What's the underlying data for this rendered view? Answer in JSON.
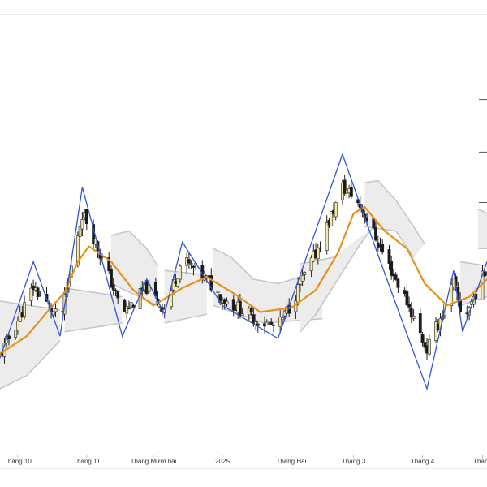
{
  "colors": {
    "background": "#ffffff",
    "frame": "#e6e6e6",
    "axis": "#bdbdbd",
    "zigzag": "#2f56d6",
    "moving_average": "#e8901c",
    "band_fill": "#ececec",
    "band_edge": "#c4c4c4",
    "candle_up": "#f3e7a6",
    "candle_down": "#1a1a1a",
    "wick": "#222222",
    "level_mark_dark": "#555555",
    "level_mark_red": "#d04040"
  },
  "chart_data": {
    "type": "candlestick",
    "x_axis": {
      "type": "date",
      "range": [
        "2024-09-23",
        "2025-04-30"
      ],
      "tick_labels": [
        {
          "label": "Tháng 10",
          "date": "2024-10-01"
        },
        {
          "label": "Tháng 11",
          "date": "2024-11-01"
        },
        {
          "label": "Tháng Mười hai",
          "date": "2024-12-01"
        },
        {
          "label": "2025",
          "date": "2025-01-01"
        },
        {
          "label": "Tháng Hai",
          "date": "2025-02-01"
        },
        {
          "label": "Tháng 3",
          "date": "2025-03-01"
        },
        {
          "label": "Tháng 4",
          "date": "2025-04-01"
        },
        {
          "label": "Tháng",
          "date": "2025-04-28"
        }
      ]
    },
    "y_axis": {
      "range": [
        0,
        100
      ],
      "grid": false,
      "tick_labels_visible": false
    },
    "series": [
      {
        "type": "zigzag",
        "points": [
          {
            "date": "2024-09-23",
            "y": 22.0
          },
          {
            "date": "2024-10-08",
            "y": 44.0
          },
          {
            "date": "2024-10-20",
            "y": 27.0
          },
          {
            "date": "2024-10-30",
            "y": 61.0
          },
          {
            "date": "2024-11-17",
            "y": 27.0
          },
          {
            "date": "2024-11-28",
            "y": 40.0
          },
          {
            "date": "2024-12-06",
            "y": 32.0
          },
          {
            "date": "2024-12-14",
            "y": 48.5
          },
          {
            "date": "2025-01-01",
            "y": 34.0
          },
          {
            "date": "2025-01-26",
            "y": 26.5
          },
          {
            "date": "2025-02-24",
            "y": 68.5
          },
          {
            "date": "2025-03-12",
            "y": 45.5
          },
          {
            "date": "2025-04-03",
            "y": 15.0
          },
          {
            "date": "2025-04-15",
            "y": 42.0
          },
          {
            "date": "2025-04-19",
            "y": 28.0
          },
          {
            "date": "2025-04-30",
            "y": 44.0
          }
        ]
      },
      {
        "type": "moving_average",
        "points": [
          {
            "date": "2024-09-23",
            "y": 23.0
          },
          {
            "date": "2024-10-05",
            "y": 27.0
          },
          {
            "date": "2024-10-15",
            "y": 33.0
          },
          {
            "date": "2024-10-22",
            "y": 37.0
          },
          {
            "date": "2024-10-28",
            "y": 44.0
          },
          {
            "date": "2024-11-02",
            "y": 47.5
          },
          {
            "date": "2024-11-12",
            "y": 44.0
          },
          {
            "date": "2024-11-22",
            "y": 37.5
          },
          {
            "date": "2024-12-01",
            "y": 34.0
          },
          {
            "date": "2024-12-14",
            "y": 38.0
          },
          {
            "date": "2024-12-25",
            "y": 40.5
          },
          {
            "date": "2025-01-07",
            "y": 36.5
          },
          {
            "date": "2025-01-18",
            "y": 32.5
          },
          {
            "date": "2025-02-01",
            "y": 33.5
          },
          {
            "date": "2025-02-12",
            "y": 37.5
          },
          {
            "date": "2025-02-22",
            "y": 46.0
          },
          {
            "date": "2025-03-01",
            "y": 55.0
          },
          {
            "date": "2025-03-06",
            "y": 56.5
          },
          {
            "date": "2025-03-15",
            "y": 51.0
          },
          {
            "date": "2025-03-25",
            "y": 47.0
          },
          {
            "date": "2025-04-02",
            "y": 39.0
          },
          {
            "date": "2025-04-12",
            "y": 34.0
          },
          {
            "date": "2025-04-22",
            "y": 36.0
          },
          {
            "date": "2025-04-30",
            "y": 40.0
          }
        ]
      },
      {
        "type": "band",
        "segments": [
          {
            "upper": [
              {
                "date": "2024-09-23",
                "y": 35.0
              },
              {
                "date": "2024-10-20",
                "y": 33.0
              }
            ],
            "lower": [
              {
                "date": "2024-09-23",
                "y": 15.0
              },
              {
                "date": "2024-10-05",
                "y": 18.0
              },
              {
                "date": "2024-10-20",
                "y": 26.0
              }
            ]
          },
          {
            "upper": [
              {
                "date": "2024-10-22",
                "y": 38.0
              },
              {
                "date": "2024-11-17",
                "y": 36.0
              }
            ],
            "lower": [
              {
                "date": "2024-10-22",
                "y": 28.0
              },
              {
                "date": "2024-11-17",
                "y": 30.0
              }
            ]
          },
          {
            "upper": [
              {
                "date": "2024-11-12",
                "y": 50.0
              },
              {
                "date": "2024-11-20",
                "y": 51.0
              },
              {
                "date": "2024-11-28",
                "y": 47.0
              },
              {
                "date": "2024-12-03",
                "y": 43.0
              }
            ],
            "lower": [
              {
                "date": "2024-11-12",
                "y": 39.0
              },
              {
                "date": "2024-12-03",
                "y": 34.0
              }
            ]
          },
          {
            "upper": [
              {
                "date": "2024-12-06",
                "y": 42.0
              },
              {
                "date": "2024-12-25",
                "y": 41.0
              }
            ],
            "lower": [
              {
                "date": "2024-12-06",
                "y": 30.0
              },
              {
                "date": "2024-12-25",
                "y": 32.0
              }
            ]
          },
          {
            "upper": [
              {
                "date": "2024-12-28",
                "y": 47.0
              },
              {
                "date": "2025-01-05",
                "y": 45.0
              },
              {
                "date": "2025-01-15",
                "y": 40.0
              },
              {
                "date": "2025-01-26",
                "y": 39.0
              },
              {
                "date": "2025-02-05",
                "y": 40.5
              },
              {
                "date": "2025-02-15",
                "y": 43.0
              }
            ],
            "lower": [
              {
                "date": "2024-12-28",
                "y": 34.0
              },
              {
                "date": "2025-01-20",
                "y": 30.0
              },
              {
                "date": "2025-02-15",
                "y": 31.0
              }
            ]
          },
          {
            "upper": [
              {
                "date": "2025-02-05",
                "y": 43.5
              },
              {
                "date": "2025-02-20",
                "y": 45.0
              }
            ],
            "lower": [
              {
                "date": "2025-02-05",
                "y": 28.0
              },
              {
                "date": "2025-02-12",
                "y": 32.0
              },
              {
                "date": "2025-02-22",
                "y": 40.0
              },
              {
                "date": "2025-03-04",
                "y": 48.0
              },
              {
                "date": "2025-03-10",
                "y": 52.0
              }
            ]
          },
          {
            "upper": [
              {
                "date": "2025-03-06",
                "y": 62.0
              },
              {
                "date": "2025-03-12",
                "y": 62.5
              },
              {
                "date": "2025-03-20",
                "y": 58.0
              },
              {
                "date": "2025-03-28",
                "y": 52.0
              },
              {
                "date": "2025-04-02",
                "y": 48.0
              }
            ],
            "lower": [
              {
                "date": "2025-03-06",
                "y": 52.0
              },
              {
                "date": "2025-03-20",
                "y": 51.0
              },
              {
                "date": "2025-03-28",
                "y": 45.0
              }
            ]
          },
          {
            "upper": [
              {
                "date": "2025-04-18",
                "y": 44.0
              },
              {
                "date": "2025-04-30",
                "y": 43.0
              }
            ],
            "lower": [
              {
                "date": "2025-04-18",
                "y": 34.0
              },
              {
                "date": "2025-04-30",
                "y": 36.0
              }
            ]
          },
          {
            "upper": [
              {
                "date": "2025-04-26",
                "y": 56.0
              },
              {
                "date": "2025-04-30",
                "y": 55.0
              }
            ],
            "lower": [
              {
                "date": "2025-04-26",
                "y": 47.0
              },
              {
                "date": "2025-04-30",
                "y": 47.0
              }
            ]
          }
        ]
      }
    ],
    "level_marks": [
      {
        "y": 81.0,
        "color": "dark"
      },
      {
        "y": 69.0,
        "color": "dark"
      },
      {
        "y": 57.5,
        "color": "dark"
      },
      {
        "y": 27.5,
        "color": "red"
      }
    ]
  }
}
